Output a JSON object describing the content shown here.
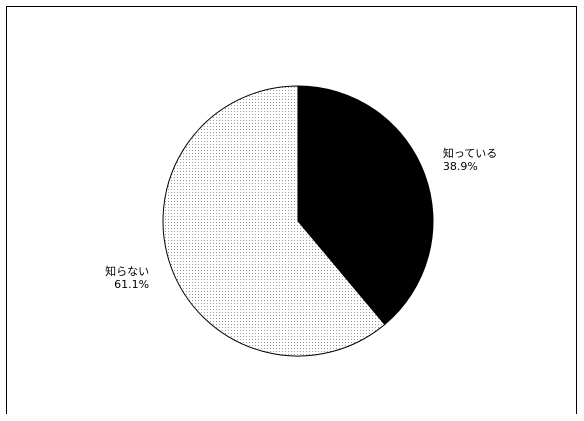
{
  "chart_data": {
    "type": "pie",
    "title": "",
    "start_angle_deg": 0,
    "direction": "clockwise",
    "slices": [
      {
        "label": "知っている",
        "value": 38.9,
        "value_label": "38.9%",
        "fill": "#000000",
        "pattern": "solid"
      },
      {
        "label": "知らない",
        "value": 61.1,
        "value_label": "61.1%",
        "fill": "#f2f2f2",
        "pattern": "dotted"
      }
    ]
  }
}
